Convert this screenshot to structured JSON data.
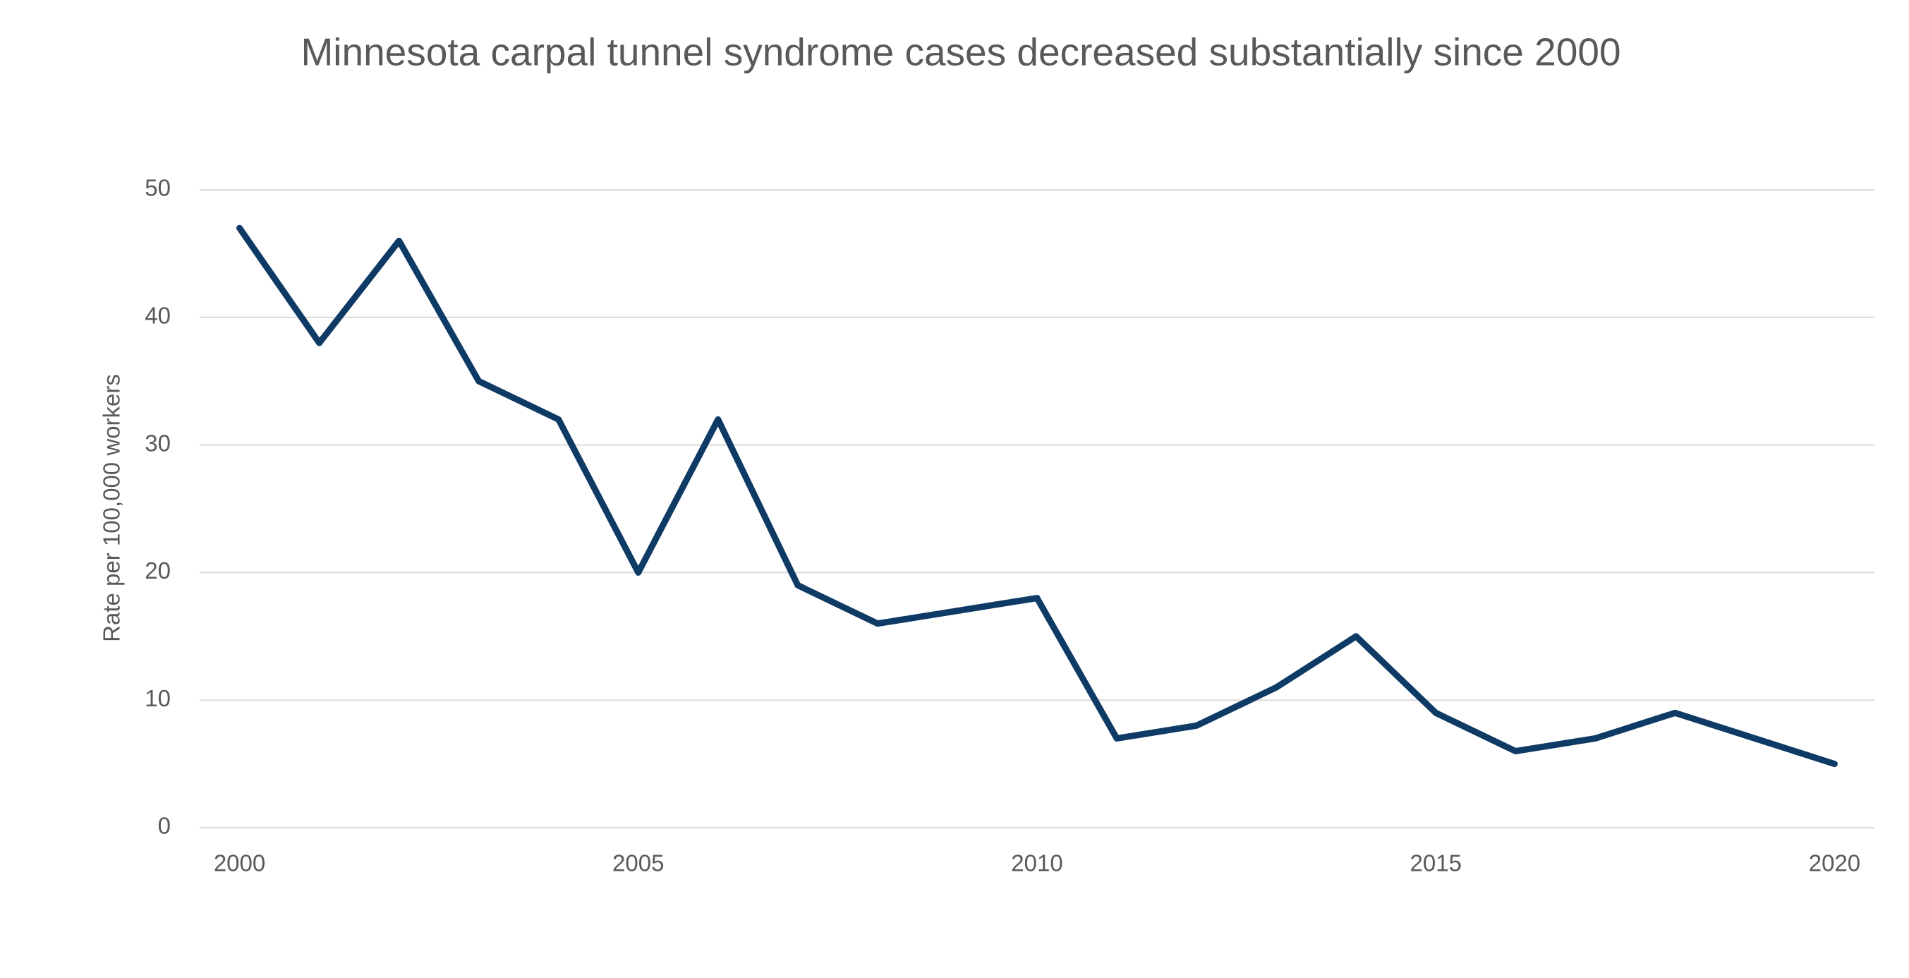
{
  "chart_data": {
    "type": "line",
    "title": "Minnesota carpal tunnel syndrome cases decreased substantially since 2000",
    "y_label": "Rate per 100,000 workers",
    "x": [
      2000,
      2001,
      2002,
      2003,
      2004,
      2005,
      2006,
      2007,
      2008,
      2009,
      2010,
      2011,
      2012,
      2013,
      2014,
      2015,
      2016,
      2017,
      2018,
      2019,
      2020
    ],
    "values": [
      47,
      38,
      46,
      35,
      32,
      20,
      32,
      19,
      16,
      17,
      18,
      7,
      8,
      11,
      15,
      9,
      6,
      7,
      9,
      7,
      5
    ],
    "color": "#0e3a66",
    "xlim": [
      1999.5,
      2020.5
    ],
    "xticks": [
      2000,
      2005,
      2010,
      2015,
      2020
    ],
    "ylim": [
      0,
      50
    ],
    "yticks": [
      0,
      10,
      20,
      30,
      40,
      50
    ],
    "grid": true
  }
}
